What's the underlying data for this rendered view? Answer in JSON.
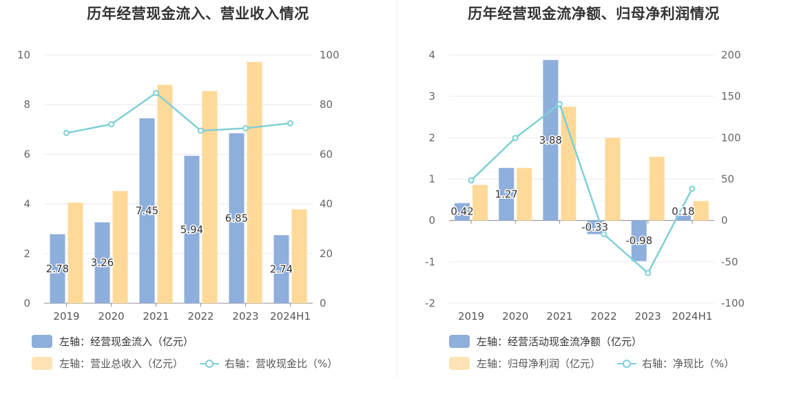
{
  "colors": {
    "bar_blue": "#8eaedc",
    "bar_orange": "#ffd998",
    "line_teal": "#7ecfd6"
  },
  "left": {
    "title": "历年经营现金流入、营业收入情况",
    "legend": {
      "bar1": "左轴：经营现金流入（亿元）",
      "bar2": "左轴：营业总收入（亿元）",
      "line": "右轴：营收现金比（%）"
    }
  },
  "right": {
    "title": "历年经营现金流净额、归母净利润情况",
    "legend": {
      "bar1": "左轴：经营活动现金流净额（亿元）",
      "bar2": "左轴：归母净利润（亿元）",
      "line": "右轴：净现比（%）"
    }
  },
  "chart_data": [
    {
      "type": "bar",
      "title": "历年经营现金流入、营业收入情况",
      "categories": [
        "2019",
        "2020",
        "2021",
        "2022",
        "2023",
        "2024H1"
      ],
      "y_left": {
        "ticks": [
          "0",
          "2",
          "4",
          "6",
          "8",
          "10"
        ],
        "ylim": [
          0,
          10
        ]
      },
      "y_right": {
        "ticks": [
          "0",
          "20",
          "40",
          "60",
          "80",
          "100"
        ],
        "ylim": [
          0,
          100
        ]
      },
      "series": [
        {
          "name": "左轴：经营现金流入（亿元）",
          "axis": "left",
          "type": "bar",
          "values": [
            2.78,
            3.26,
            7.45,
            5.94,
            6.85,
            2.74
          ],
          "labels": [
            "2.78",
            "3.26",
            "7.45",
            "5.94",
            "6.85",
            "2.74"
          ]
        },
        {
          "name": "左轴：营业总收入（亿元）",
          "axis": "left",
          "type": "bar",
          "values": [
            4.05,
            4.52,
            8.8,
            8.55,
            9.72,
            3.78
          ]
        },
        {
          "name": "右轴：营收现金比（%）",
          "axis": "right",
          "type": "line",
          "values": [
            68.6,
            72.1,
            84.7,
            69.5,
            70.5,
            72.5
          ]
        }
      ],
      "grid": true
    },
    {
      "type": "bar",
      "title": "历年经营现金流净额、归母净利润情况",
      "categories": [
        "2019",
        "2020",
        "2021",
        "2022",
        "2023",
        "2024H1"
      ],
      "y_left": {
        "ticks": [
          "-2",
          "-1",
          "0",
          "1",
          "2",
          "3",
          "4"
        ],
        "ylim": [
          -2,
          4
        ]
      },
      "y_right": {
        "ticks": [
          "-100",
          "-50",
          "0",
          "50",
          "100",
          "150",
          "200"
        ],
        "ylim": [
          -100,
          200
        ]
      },
      "series": [
        {
          "name": "左轴：经营活动现金流净额（亿元）",
          "axis": "left",
          "type": "bar",
          "values": [
            0.42,
            1.27,
            3.88,
            -0.33,
            -0.98,
            0.18
          ],
          "labels": [
            "0.42",
            "1.27",
            "3.88",
            "-0.33",
            "-0.98",
            "0.18"
          ]
        },
        {
          "name": "左轴：归母净利润（亿元）",
          "axis": "left",
          "type": "bar",
          "values": [
            0.86,
            1.27,
            2.75,
            2.0,
            1.54,
            0.47
          ]
        },
        {
          "name": "右轴：净现比（%）",
          "axis": "right",
          "type": "line",
          "values": [
            48.5,
            99.8,
            140.7,
            -16.4,
            -63.5,
            38.4
          ]
        }
      ],
      "grid": true
    }
  ]
}
